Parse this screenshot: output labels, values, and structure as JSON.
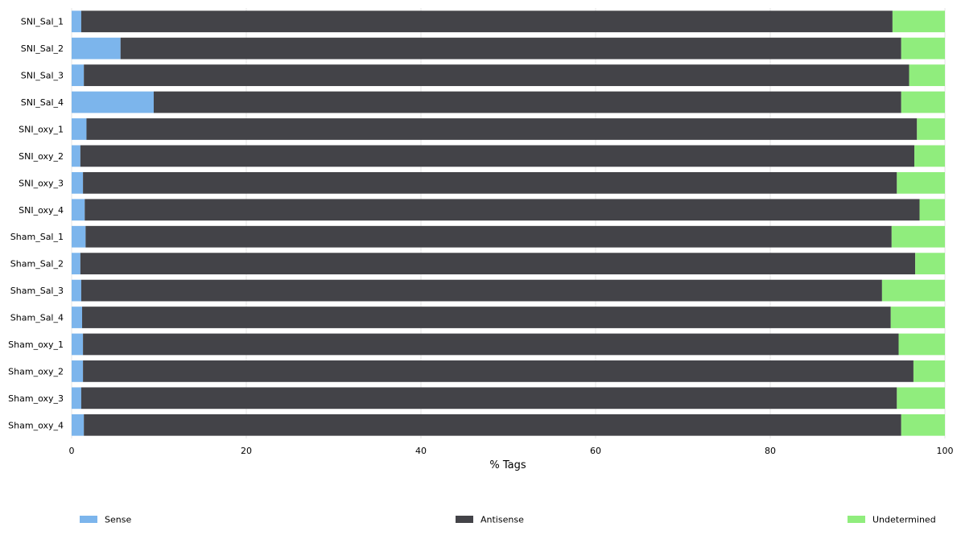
{
  "chart_data": {
    "type": "bar",
    "orientation": "horizontal",
    "stacked": true,
    "title": "",
    "xlabel": "% Tags",
    "ylabel": "",
    "xlim": [
      0,
      100
    ],
    "x_ticks": [
      0,
      20,
      40,
      60,
      80,
      100
    ],
    "grid": "vertical",
    "legend_position": "bottom",
    "categories": [
      "SNI_Sal_1",
      "SNI_Sal_2",
      "SNI_Sal_3",
      "SNI_Sal_4",
      "SNI_oxy_1",
      "SNI_oxy_2",
      "SNI_oxy_3",
      "SNI_oxy_4",
      "Sham_Sal_1",
      "Sham_Sal_2",
      "Sham_Sal_3",
      "Sham_Sal_4",
      "Sham_oxy_1",
      "Sham_oxy_2",
      "Sham_oxy_3",
      "Sham_oxy_4"
    ],
    "series": [
      {
        "name": "Sense",
        "color": "#7cb5ec",
        "values": [
          1.1,
          5.6,
          1.4,
          9.4,
          1.7,
          1.0,
          1.3,
          1.5,
          1.6,
          1.0,
          1.1,
          1.2,
          1.3,
          1.3,
          1.1,
          1.4
        ]
      },
      {
        "name": "Antisense",
        "color": "#434348",
        "values": [
          92.9,
          89.4,
          94.5,
          85.6,
          95.1,
          95.5,
          93.2,
          95.6,
          92.3,
          95.6,
          91.7,
          92.6,
          93.4,
          95.1,
          93.4,
          93.6
        ]
      },
      {
        "name": "Undetermined",
        "color": "#90ed7d",
        "values": [
          6.0,
          5.0,
          4.1,
          5.0,
          3.2,
          3.5,
          5.5,
          2.9,
          6.1,
          3.4,
          7.2,
          6.2,
          5.3,
          3.6,
          5.5,
          5.0
        ]
      }
    ]
  }
}
